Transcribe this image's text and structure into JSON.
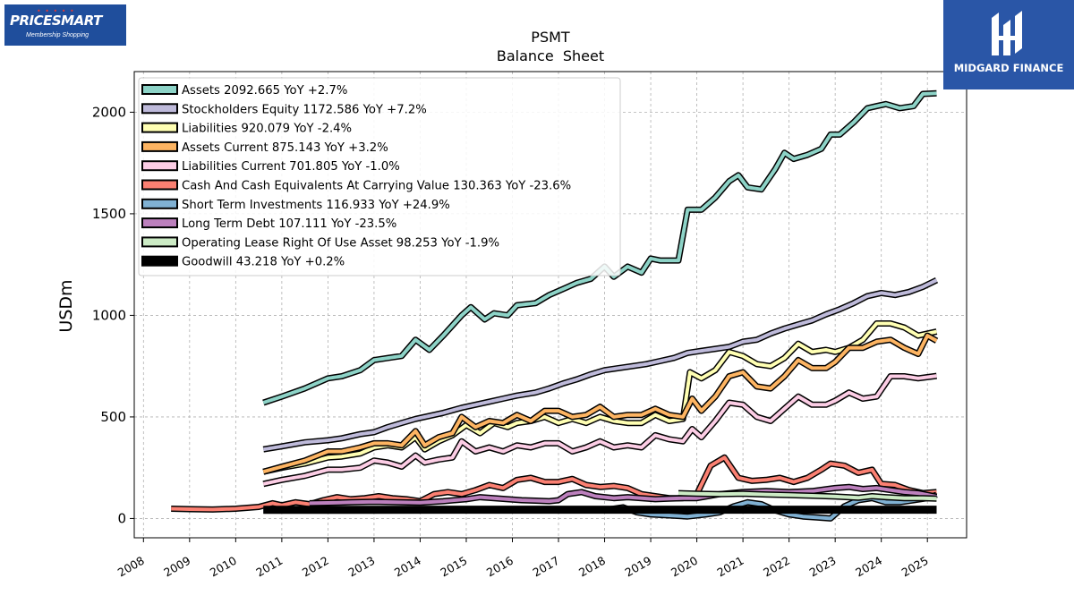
{
  "logos": {
    "left_brand": "PRICESMART",
    "left_tagline": "Membership Shopping",
    "right_brand": "MIDGARD FINANCE"
  },
  "chart_data": {
    "type": "line",
    "title": "PSMT",
    "subtitle": "Balance  Sheet",
    "ylabel": "USDm",
    "xlabel": "",
    "xlim": [
      2007.8,
      2025.85
    ],
    "ylim": [
      -95,
      2200
    ],
    "grid": true,
    "legend_position": "top-left",
    "x_ticks": [
      2008,
      2009,
      2010,
      2011,
      2012,
      2013,
      2014,
      2015,
      2016,
      2017,
      2018,
      2019,
      2020,
      2021,
      2022,
      2023,
      2024,
      2025
    ],
    "y_ticks": [
      0,
      500,
      1000,
      1500,
      2000
    ],
    "series": [
      {
        "name": "Assets",
        "legend_label": "Assets  2092.665 YoY +2.7%",
        "color": "#8dd3c7",
        "x": [
          2010.6,
          2011.0,
          2011.5,
          2012.0,
          2012.3,
          2012.7,
          2013.0,
          2013.3,
          2013.6,
          2013.9,
          2014.2,
          2014.5,
          2014.9,
          2015.1,
          2015.4,
          2015.6,
          2015.9,
          2016.1,
          2016.5,
          2016.8,
          2017.1,
          2017.4,
          2017.7,
          2018.0,
          2018.2,
          2018.5,
          2018.8,
          2019.0,
          2019.2,
          2019.6,
          2019.8,
          2020.1,
          2020.4,
          2020.7,
          2020.9,
          2021.1,
          2021.4,
          2021.7,
          2021.9,
          2022.1,
          2022.4,
          2022.7,
          2022.9,
          2023.1,
          2023.4,
          2023.7,
          2023.9,
          2024.1,
          2024.4,
          2024.7,
          2024.9,
          2025.2
        ],
        "y": [
          570,
          600,
          640,
          690,
          700,
          730,
          780,
          790,
          800,
          880,
          830,
          900,
          1000,
          1040,
          980,
          1010,
          1000,
          1050,
          1060,
          1100,
          1130,
          1160,
          1180,
          1240,
          1190,
          1240,
          1210,
          1280,
          1270,
          1270,
          1520,
          1520,
          1580,
          1660,
          1690,
          1630,
          1620,
          1720,
          1800,
          1770,
          1790,
          1820,
          1890,
          1890,
          1950,
          2020,
          2030,
          2040,
          2020,
          2030,
          2090,
          2093
        ]
      },
      {
        "name": "Stockholders Equity",
        "legend_label": "Stockholders Equity  1172.586 YoY +7.2%",
        "color": "#bebada",
        "x": [
          2010.6,
          2011.0,
          2011.5,
          2012.0,
          2012.3,
          2012.7,
          2013.0,
          2013.3,
          2013.6,
          2013.9,
          2014.2,
          2014.5,
          2014.9,
          2015.2,
          2015.5,
          2015.8,
          2016.1,
          2016.5,
          2016.8,
          2017.1,
          2017.4,
          2017.7,
          2018.0,
          2018.3,
          2018.6,
          2018.9,
          2019.2,
          2019.5,
          2019.8,
          2020.1,
          2020.4,
          2020.7,
          2021.0,
          2021.3,
          2021.6,
          2021.9,
          2022.2,
          2022.5,
          2022.8,
          2023.1,
          2023.4,
          2023.7,
          2024.0,
          2024.3,
          2024.6,
          2024.9,
          2025.2
        ],
        "y": [
          340,
          355,
          375,
          385,
          395,
          415,
          425,
          450,
          470,
          490,
          505,
          520,
          545,
          560,
          575,
          590,
          605,
          620,
          640,
          665,
          685,
          710,
          730,
          740,
          750,
          760,
          775,
          790,
          815,
          825,
          835,
          845,
          870,
          880,
          910,
          935,
          955,
          975,
          1005,
          1030,
          1060,
          1095,
          1110,
          1100,
          1115,
          1140,
          1173
        ]
      },
      {
        "name": "Liabilities",
        "legend_label": "Liabilities  920.079 YoY -2.4%",
        "color": "#ffffb3",
        "x": [
          2010.6,
          2011.0,
          2011.5,
          2012.0,
          2012.3,
          2012.7,
          2013.0,
          2013.3,
          2013.6,
          2013.9,
          2014.1,
          2014.4,
          2014.7,
          2015.0,
          2015.3,
          2015.6,
          2015.9,
          2016.1,
          2016.4,
          2016.7,
          2017.0,
          2017.3,
          2017.6,
          2017.9,
          2018.2,
          2018.5,
          2018.8,
          2019.1,
          2019.4,
          2019.7,
          2019.85,
          2020.1,
          2020.4,
          2020.7,
          2021.0,
          2021.3,
          2021.6,
          2021.9,
          2022.2,
          2022.5,
          2022.8,
          2023.0,
          2023.3,
          2023.6,
          2023.9,
          2024.2,
          2024.5,
          2024.8,
          2025.2
        ],
        "y": [
          230,
          250,
          270,
          300,
          305,
          320,
          350,
          360,
          350,
          400,
          340,
          380,
          410,
          460,
          420,
          470,
          450,
          470,
          480,
          500,
          470,
          490,
          470,
          500,
          480,
          470,
          470,
          510,
          480,
          490,
          720,
          690,
          730,
          820,
          800,
          760,
          750,
          790,
          860,
          820,
          830,
          820,
          840,
          880,
          960,
          960,
          940,
          900,
          920
        ]
      },
      {
        "name": "Assets Current",
        "legend_label": "Assets Current  875.143 YoY +3.2%",
        "color": "#fdb462",
        "x": [
          2010.6,
          2011.0,
          2011.5,
          2012.0,
          2012.3,
          2012.7,
          2013.0,
          2013.3,
          2013.6,
          2013.9,
          2014.1,
          2014.4,
          2014.7,
          2014.9,
          2015.2,
          2015.5,
          2015.8,
          2016.1,
          2016.4,
          2016.7,
          2017.0,
          2017.3,
          2017.6,
          2017.9,
          2018.2,
          2018.5,
          2018.8,
          2019.1,
          2019.4,
          2019.7,
          2019.9,
          2020.1,
          2020.4,
          2020.7,
          2021.0,
          2021.3,
          2021.6,
          2021.9,
          2022.2,
          2022.5,
          2022.8,
          2023.0,
          2023.3,
          2023.6,
          2023.9,
          2024.2,
          2024.5,
          2024.8,
          2025.0,
          2025.2
        ],
        "y": [
          230,
          255,
          285,
          330,
          330,
          350,
          370,
          370,
          360,
          430,
          360,
          400,
          420,
          500,
          450,
          480,
          470,
          510,
          480,
          530,
          530,
          500,
          510,
          550,
          500,
          510,
          510,
          540,
          510,
          500,
          590,
          530,
          600,
          700,
          720,
          650,
          640,
          700,
          780,
          740,
          740,
          770,
          840,
          840,
          870,
          880,
          840,
          810,
          900,
          875
        ]
      },
      {
        "name": "Liabilities Current",
        "legend_label": "Liabilities Current  701.805 YoY -1.0%",
        "color": "#fccde5",
        "x": [
          2010.6,
          2011.0,
          2011.5,
          2012.0,
          2012.3,
          2012.7,
          2013.0,
          2013.3,
          2013.6,
          2013.9,
          2014.1,
          2014.4,
          2014.7,
          2014.9,
          2015.2,
          2015.5,
          2015.8,
          2016.1,
          2016.4,
          2016.7,
          2017.0,
          2017.3,
          2017.6,
          2017.9,
          2018.2,
          2018.5,
          2018.8,
          2019.1,
          2019.4,
          2019.7,
          2019.9,
          2020.1,
          2020.4,
          2020.7,
          2021.0,
          2021.3,
          2021.6,
          2021.9,
          2022.2,
          2022.5,
          2022.8,
          2023.0,
          2023.3,
          2023.6,
          2023.9,
          2024.2,
          2024.5,
          2024.8,
          2025.2
        ],
        "y": [
          170,
          190,
          210,
          240,
          240,
          250,
          285,
          275,
          255,
          310,
          275,
          290,
          300,
          380,
          330,
          350,
          330,
          360,
          350,
          370,
          370,
          330,
          350,
          380,
          350,
          360,
          350,
          410,
          390,
          380,
          440,
          400,
          480,
          570,
          560,
          500,
          480,
          540,
          600,
          560,
          560,
          580,
          620,
          590,
          600,
          700,
          700,
          690,
          702
        ]
      },
      {
        "name": "Cash And Cash Equivalents At Carrying Value",
        "legend_label": "Cash And Cash Equivalents At Carrying Value  130.363 YoY -23.6%",
        "color": "#fb8072",
        "x": [
          2008.6,
          2009.0,
          2009.5,
          2010.0,
          2010.5,
          2010.8,
          2011.0,
          2011.3,
          2011.6,
          2011.9,
          2012.2,
          2012.5,
          2012.8,
          2013.1,
          2013.4,
          2013.7,
          2014.0,
          2014.3,
          2014.6,
          2014.9,
          2015.2,
          2015.5,
          2015.8,
          2016.1,
          2016.4,
          2016.7,
          2017.0,
          2017.3,
          2017.6,
          2017.9,
          2018.2,
          2018.5,
          2018.8,
          2019.1,
          2019.4,
          2019.7,
          2020.0,
          2020.3,
          2020.6,
          2020.9,
          2021.2,
          2021.5,
          2021.8,
          2022.1,
          2022.4,
          2022.7,
          2022.9,
          2023.2,
          2023.5,
          2023.8,
          2024.0,
          2024.3,
          2024.6,
          2024.9,
          2025.2
        ],
        "y": [
          48,
          46,
          44,
          48,
          57,
          75,
          65,
          80,
          70,
          90,
          105,
          95,
          100,
          110,
          100,
          95,
          85,
          120,
          130,
          120,
          140,
          165,
          150,
          190,
          200,
          180,
          180,
          195,
          165,
          155,
          160,
          150,
          120,
          110,
          100,
          100,
          120,
          260,
          300,
          200,
          185,
          190,
          200,
          180,
          200,
          240,
          270,
          260,
          225,
          240,
          170,
          165,
          140,
          125,
          130
        ]
      },
      {
        "name": "Short Term Investments",
        "legend_label": "Short Term Investments  116.933 YoY +24.9%",
        "color": "#80b1d3",
        "x": [
          2010.6,
          2011.5,
          2012.5,
          2013.5,
          2014.5,
          2015.5,
          2016.5,
          2017.5,
          2017.9,
          2018.1,
          2018.4,
          2018.7,
          2019.0,
          2019.4,
          2019.8,
          2020.2,
          2020.5,
          2020.8,
          2021.1,
          2021.4,
          2021.7,
          2022.0,
          2022.3,
          2022.6,
          2022.9,
          2023.2,
          2023.5,
          2023.8,
          2024.1,
          2024.4,
          2024.7,
          2025.0,
          2025.2
        ],
        "y": [
          40,
          40,
          40,
          40,
          40,
          40,
          40,
          40,
          40,
          45,
          55,
          30,
          20,
          15,
          10,
          20,
          30,
          60,
          80,
          70,
          40,
          20,
          10,
          5,
          0,
          60,
          90,
          100,
          80,
          80,
          90,
          100,
          117
        ]
      },
      {
        "name": "Long Term Debt",
        "legend_label": "Long Term Debt  107.111 YoY -23.5%",
        "color": "#bc80bd",
        "x": [
          2011.6,
          2012.0,
          2012.5,
          2013.0,
          2013.5,
          2014.0,
          2014.5,
          2015.0,
          2015.3,
          2015.6,
          2015.9,
          2016.2,
          2016.5,
          2016.8,
          2017.0,
          2017.2,
          2017.5,
          2017.8,
          2018.2,
          2018.5,
          2018.8,
          2019.1,
          2019.4,
          2019.7,
          2020.0,
          2020.5,
          2021.0,
          2021.5,
          2022.0,
          2022.5,
          2023.0,
          2023.3,
          2023.6,
          2023.9,
          2024.2,
          2024.5,
          2024.8,
          2025.2
        ],
        "y": [
          75,
          77,
          80,
          82,
          80,
          78,
          85,
          95,
          105,
          100,
          95,
          90,
          88,
          85,
          90,
          120,
          130,
          110,
          100,
          105,
          100,
          95,
          98,
          100,
          100,
          120,
          130,
          135,
          130,
          135,
          150,
          155,
          145,
          150,
          140,
          130,
          125,
          107
        ]
      },
      {
        "name": "Operating Lease Right Of Use Asset",
        "legend_label": "Operating Lease Right Of Use Asset  98.253 YoY -1.9%",
        "color": "#ccebc5",
        "x": [
          2019.6,
          2020.0,
          2020.5,
          2021.0,
          2021.5,
          2022.0,
          2022.5,
          2023.0,
          2023.5,
          2023.8,
          2024.1,
          2024.5,
          2024.9,
          2025.2
        ],
        "y": [
          125,
          122,
          120,
          122,
          118,
          115,
          112,
          108,
          102,
          110,
          105,
          100,
          100,
          98
        ]
      },
      {
        "name": "Goodwill",
        "legend_label": "Goodwill  43.218 YoY +0.2%",
        "color": "#000000",
        "x": [
          2010.6,
          2025.2
        ],
        "y": [
          43,
          43.2
        ]
      }
    ]
  }
}
